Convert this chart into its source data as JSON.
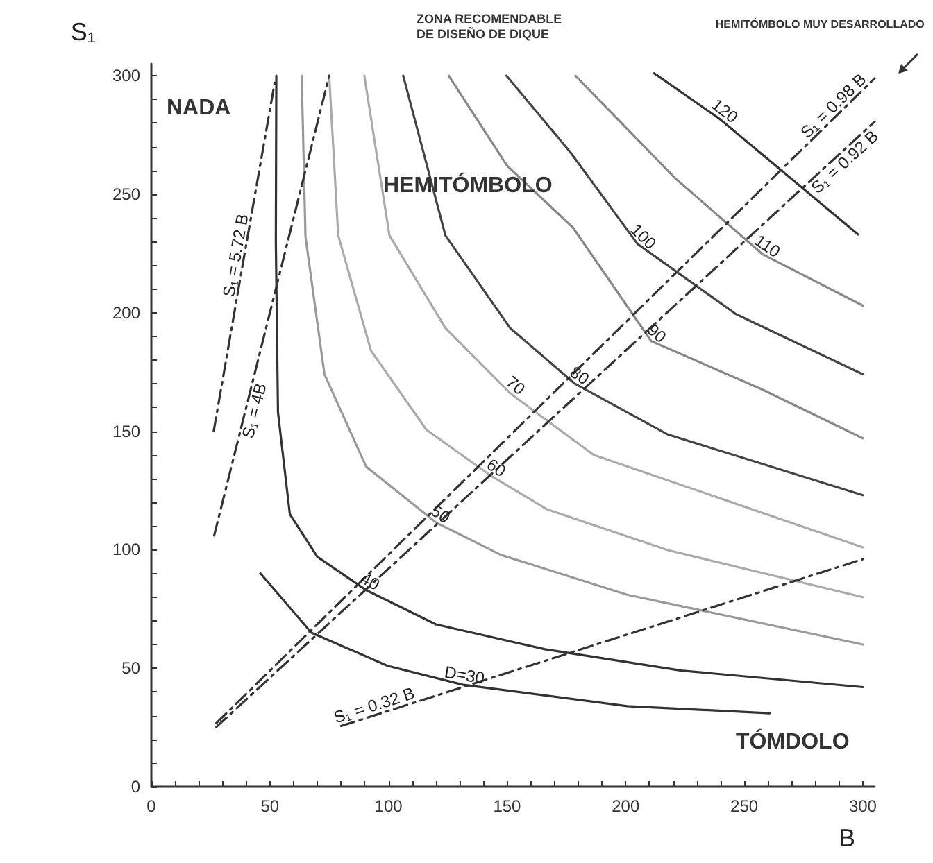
{
  "chart_data": {
    "type": "line",
    "xlabel": "B",
    "ylabel": "S₁",
    "xlim": [
      0,
      305
    ],
    "ylim": [
      0,
      305
    ],
    "xticks": [
      0,
      {
        "value": 10,
        "label": null
      },
      {
        "value": 20,
        "label": null
      },
      {
        "value": 30,
        "label": null
      },
      {
        "value": 40,
        "label": null
      },
      50,
      {
        "value": 60,
        "label": null
      },
      {
        "value": 70,
        "label": null
      },
      {
        "value": 80,
        "label": null
      },
      {
        "value": 90,
        "label": null
      },
      100,
      {
        "value": 110,
        "label": null
      },
      {
        "value": 120,
        "label": null
      },
      {
        "value": 130,
        "label": null
      },
      {
        "value": 140,
        "label": null
      },
      150,
      {
        "value": 160,
        "label": null
      },
      {
        "value": 170,
        "label": null
      },
      {
        "value": 180,
        "label": null
      },
      {
        "value": 190,
        "label": null
      },
      200,
      {
        "value": 210,
        "label": null
      },
      {
        "value": 220,
        "label": null
      },
      {
        "value": 230,
        "label": null
      },
      {
        "value": 240,
        "label": null
      },
      250,
      {
        "value": 260,
        "label": null
      },
      {
        "value": 270,
        "label": null
      },
      {
        "value": 280,
        "label": null
      },
      {
        "value": 290,
        "label": null
      },
      300
    ],
    "yticks": [
      0,
      {
        "value": 10,
        "label": null
      },
      {
        "value": 20,
        "label": null
      },
      {
        "value": 30,
        "label": null
      },
      {
        "value": 40,
        "label": null
      },
      50,
      {
        "value": 60,
        "label": null
      },
      {
        "value": 70,
        "label": null
      },
      {
        "value": 80,
        "label": null
      },
      {
        "value": 90,
        "label": null
      },
      100,
      {
        "value": 110,
        "label": null
      },
      {
        "value": 120,
        "label": null
      },
      {
        "value": 130,
        "label": null
      },
      {
        "value": 140,
        "label": null
      },
      150,
      {
        "value": 160,
        "label": null
      },
      {
        "value": 170,
        "label": null
      },
      {
        "value": 180,
        "label": null
      },
      {
        "value": 190,
        "label": null
      },
      200,
      {
        "value": 210,
        "label": null
      },
      {
        "value": 220,
        "label": null
      },
      {
        "value": 230,
        "label": null
      },
      {
        "value": 240,
        "label": null
      },
      250,
      {
        "value": 260,
        "label": null
      },
      {
        "value": 270,
        "label": null
      },
      {
        "value": 280,
        "label": null
      },
      {
        "value": 290,
        "label": null
      },
      300
    ],
    "grid": false,
    "legend": false,
    "marker": "none",
    "line_style": "solid",
    "series": [
      {
        "name": "D=30",
        "color": "#333333",
        "x": [
          46,
          67.5,
          99.6,
          131.5,
          200.6,
          260.7
        ],
        "values": [
          90,
          65,
          51,
          43,
          34,
          31
        ]
      },
      {
        "name": "40",
        "color": "#333333",
        "x": [
          52.7,
          52.5,
          53.4,
          58.4,
          70,
          90.5,
          120,
          166,
          223.5,
          300
        ],
        "values": [
          300,
          230,
          158,
          115,
          97,
          83,
          68.5,
          58,
          49,
          42
        ]
      },
      {
        "name": "50",
        "color": "#999999",
        "x": [
          63.4,
          65,
          73,
          90.6,
          120,
          147.4,
          200.6,
          300
        ],
        "values": [
          300,
          232,
          174,
          135,
          111.5,
          97.8,
          81,
          60
        ]
      },
      {
        "name": "60",
        "color": "#aaaaaa",
        "x": [
          75,
          78.8,
          92.6,
          116,
          143.5,
          166.9,
          217.8,
          300
        ],
        "values": [
          300,
          232.6,
          184,
          150.6,
          131,
          117,
          99.8,
          80
        ]
      },
      {
        "name": "70",
        "color": "#aaaaaa",
        "x": [
          89.8,
          100.4,
          124,
          151.3,
          186.5,
          300
        ],
        "values": [
          300,
          232.6,
          193.5,
          166,
          140,
          101
        ]
      },
      {
        "name": "80",
        "color": "#444444",
        "x": [
          106.2,
          124,
          151.3,
          178.6,
          217.8,
          300
        ],
        "values": [
          300,
          232.6,
          193.5,
          170,
          148.6,
          123
        ]
      },
      {
        "name": "90",
        "color": "#888888",
        "x": [
          125.4,
          150,
          177.7,
          210.8,
          257.8,
          300
        ],
        "values": [
          300,
          262,
          236,
          188,
          167.5,
          147
        ]
      },
      {
        "name": "100",
        "color": "#444444",
        "x": [
          149.7,
          176.7,
          205,
          246.5,
          300
        ],
        "values": [
          300,
          267.7,
          229,
          199.4,
          174
        ]
      },
      {
        "name": "110",
        "color": "#888888",
        "x": [
          178.8,
          221,
          257.8,
          300
        ],
        "values": [
          300,
          256.6,
          224.6,
          203
        ]
      },
      {
        "name": "120",
        "color": "#333333",
        "x": [
          212,
          239.6,
          298
        ],
        "values": [
          301,
          281.8,
          233
        ]
      },
      {
        "name": "S₁ = 5.72 B",
        "color": "#333333",
        "line_style": "dashed",
        "x": [
          26.3,
          39,
          52
        ],
        "values": [
          150,
          223,
          297
        ]
      },
      {
        "name": "S₁ = 4B",
        "color": "#333333",
        "line_style": "dashed",
        "x": [
          26.5,
          40,
          75
        ],
        "values": [
          106,
          160,
          300
        ]
      },
      {
        "name": "S₁ = 0.98 B",
        "color": "#333333",
        "line_style": "dashed",
        "x": [
          27.4,
          290,
          305
        ],
        "values": [
          26.8,
          284.2,
          298.9
        ]
      },
      {
        "name": "S₁ = 0.92 B",
        "color": "#333333",
        "line_style": "dashed",
        "x": [
          27.4,
          290,
          305
        ],
        "values": [
          25.2,
          266.8,
          280.6
        ]
      },
      {
        "name": "S₁ = 0.32 B",
        "color": "#333333",
        "line_style": "dashed",
        "x": [
          80,
          95,
          300
        ],
        "values": [
          25.6,
          30.4,
          96
        ]
      }
    ],
    "annotations": [
      "NADA",
      "HEMITÓMBOLO",
      "TÓMDOLO",
      "ZONA RECOMENDABLE\nDE DISEÑO DE DIQUE",
      "HEMITÓMBOLO MUY DESARROLLADO"
    ]
  }
}
